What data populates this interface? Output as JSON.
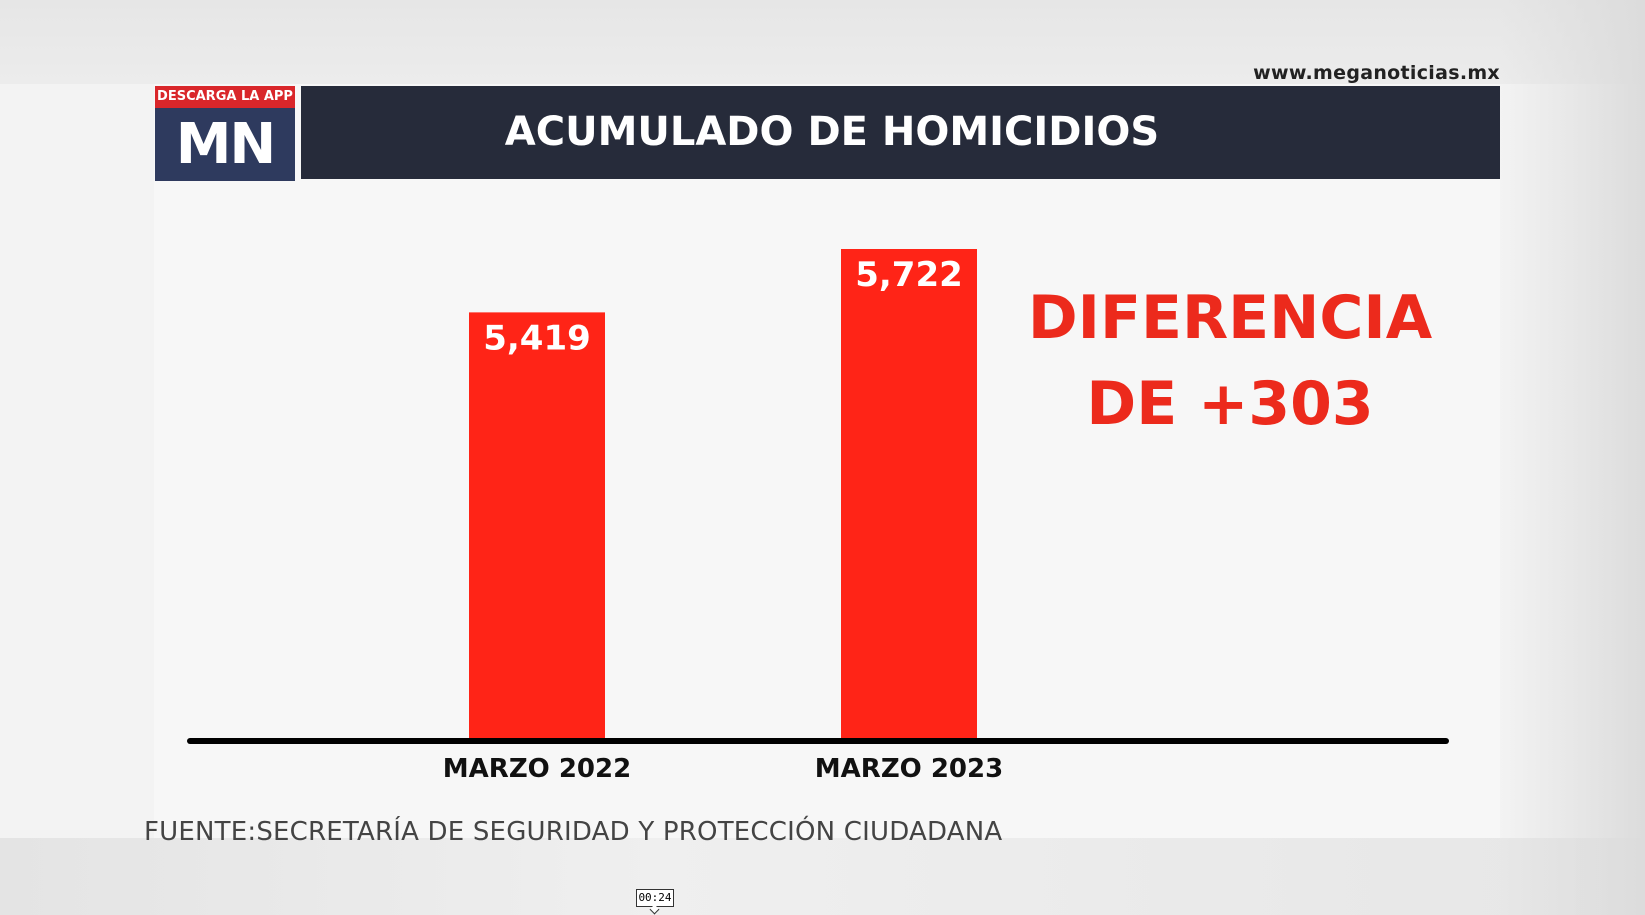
{
  "header": {
    "site_url": "www.meganoticias.mx",
    "logo_app_label": "DESCARGA LA APP",
    "logo_text": "MN"
  },
  "chart_data": {
    "type": "bar",
    "title": "ACUMULADO DE HOMICIDIOS",
    "categories": [
      "MARZO 2022",
      "MARZO 2023"
    ],
    "values": [
      5419,
      5722
    ],
    "value_labels": [
      "5,419",
      "5,722"
    ],
    "bar_color": "#ff2417",
    "grid": false,
    "legend": "none"
  },
  "annotation": {
    "line1": "DIFERENCIA",
    "line2": "DE +303"
  },
  "source": "FUENTE:SECRETARÍA DE SEGURIDAD Y PROTECCIÓN CIUDADANA",
  "player": {
    "timestamp": "00:24"
  }
}
